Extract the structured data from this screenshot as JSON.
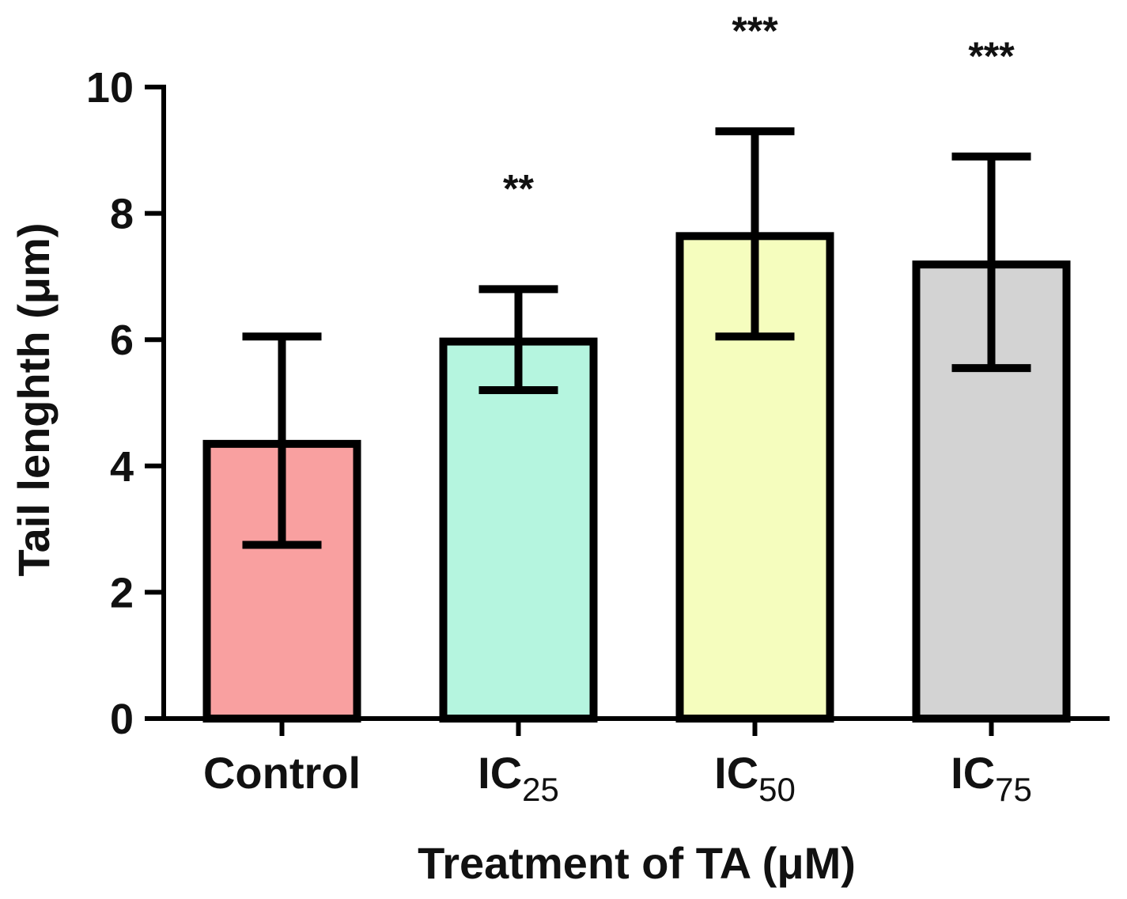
{
  "chart_data": {
    "type": "bar",
    "categories": [
      {
        "main": "Control",
        "sub": ""
      },
      {
        "main": "IC",
        "sub": "25"
      },
      {
        "main": "IC",
        "sub": "50"
      },
      {
        "main": "IC",
        "sub": "75"
      }
    ],
    "values": [
      4.35,
      5.97,
      7.64,
      7.19
    ],
    "errors": [
      {
        "low": 2.75,
        "high": 6.05
      },
      {
        "low": 5.2,
        "high": 6.8
      },
      {
        "low": 6.05,
        "high": 9.3
      },
      {
        "low": 5.55,
        "high": 8.9
      }
    ],
    "significance": [
      "",
      "**",
      "***",
      "***"
    ],
    "colors": [
      "#F9A0A0",
      "#B5F5DF",
      "#F5FDBE",
      "#D3D3D3"
    ],
    "ylabel": "Tail lenghth (μm)",
    "xlabel": "Treatment of TA (μM)",
    "ylim": [
      0,
      10
    ],
    "yticks": [
      0,
      2,
      4,
      6,
      8,
      10
    ],
    "grid": false,
    "legend": "none"
  }
}
